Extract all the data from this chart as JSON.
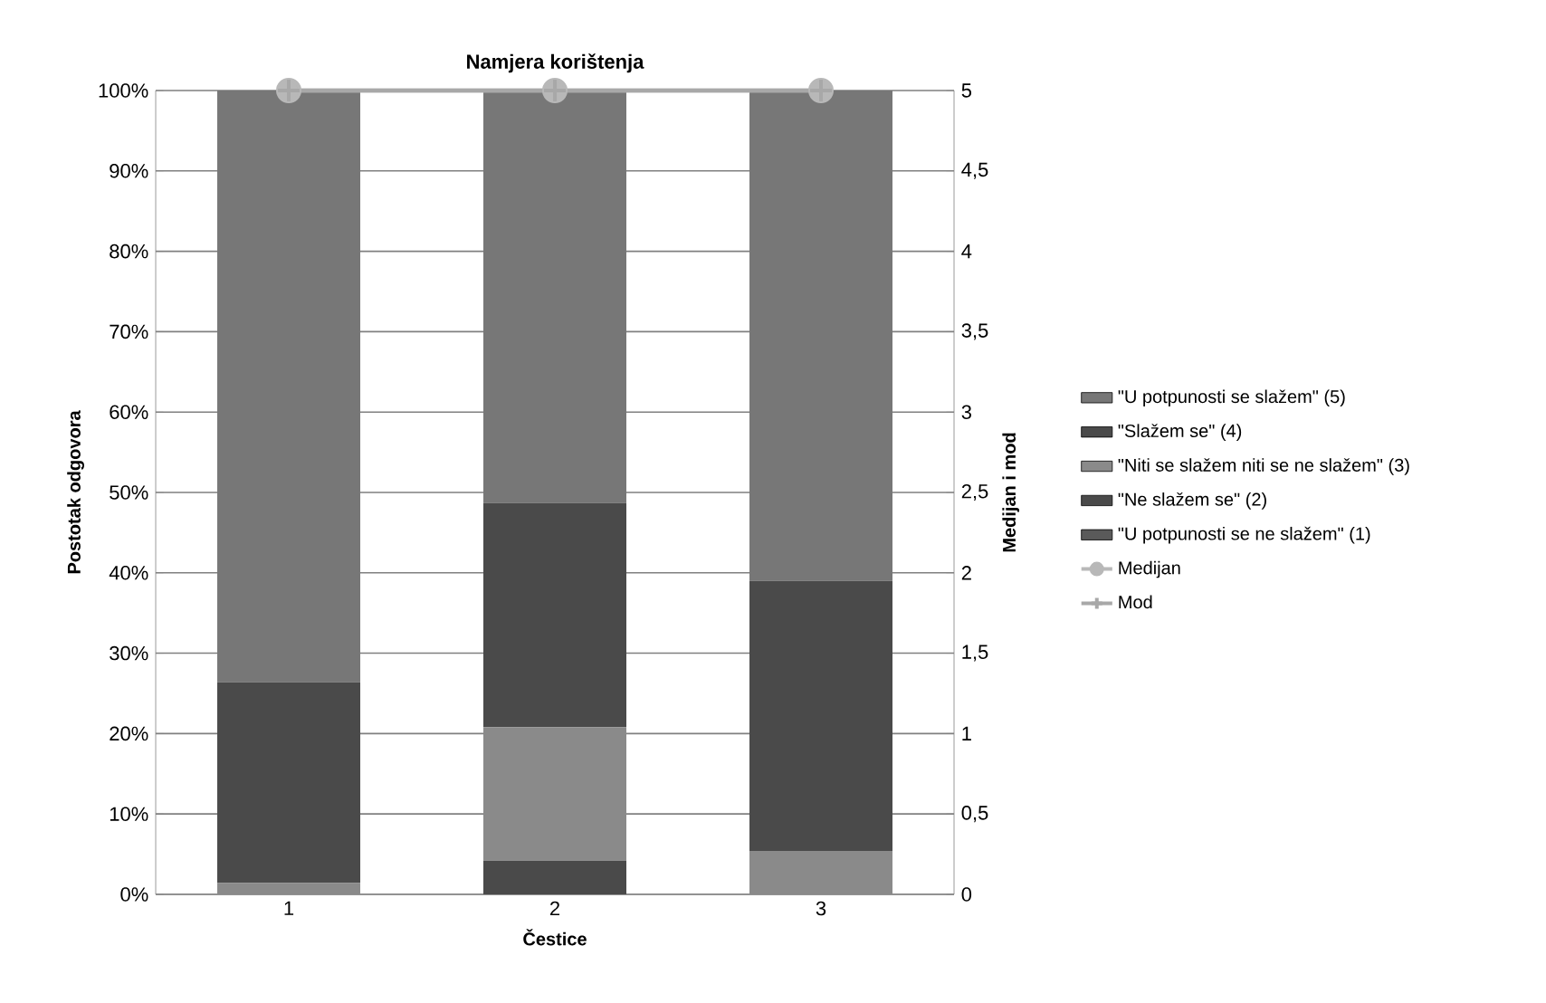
{
  "chart_data": {
    "type": "bar",
    "stacked": true,
    "title": "Namjera korištenja",
    "xlabel": "Čestice",
    "ylabel": "Postotak odgovora",
    "y2label": "Medijan i mod",
    "categories": [
      "1",
      "2",
      "3"
    ],
    "series": [
      {
        "name": "\"U potpunosti se ne slažem\" (1)",
        "color": "#5a5a5a",
        "values": [
          0,
          0,
          0
        ]
      },
      {
        "name": "\"Ne slažem se\" (2)",
        "color": "#4a4a4a",
        "values": [
          0,
          4.2,
          0
        ]
      },
      {
        "name": "\"Niti se slažem niti se ne slažem\" (3)",
        "color": "#8a8a8a",
        "values": [
          1.4,
          16.6,
          5.4
        ]
      },
      {
        "name": "\"Slažem se\" (4)",
        "color": "#4a4a4a",
        "values": [
          25.0,
          27.9,
          33.6
        ]
      },
      {
        "name": "\"U potpunosti se slažem\" (5)",
        "color": "#777777",
        "values": [
          73.6,
          51.3,
          61.0
        ]
      },
      {
        "name": "Medijan",
        "type": "line",
        "axis": "y2",
        "marker": "circle",
        "line_style": "solid",
        "color": "#b8b8b8",
        "values": [
          5,
          5,
          5
        ]
      },
      {
        "name": "Mod",
        "type": "line",
        "axis": "y2",
        "marker": "cross",
        "line_style": "solid",
        "color": "#a8a8a8",
        "values": [
          5,
          5,
          5
        ]
      }
    ],
    "ylim": [
      0,
      100
    ],
    "yticks": [
      {
        "value": 0,
        "label": "0%"
      },
      {
        "value": 10,
        "label": "10%"
      },
      {
        "value": 20,
        "label": "20%"
      },
      {
        "value": 30,
        "label": "30%"
      },
      {
        "value": 40,
        "label": "40%"
      },
      {
        "value": 50,
        "label": "50%"
      },
      {
        "value": 60,
        "label": "60%"
      },
      {
        "value": 70,
        "label": "70%"
      },
      {
        "value": 80,
        "label": "80%"
      },
      {
        "value": 90,
        "label": "90%"
      },
      {
        "value": 100,
        "label": "100%"
      }
    ],
    "y2lim": [
      0,
      5
    ],
    "y2ticks": [
      0,
      {
        "value": 0.5,
        "label": "0,5"
      },
      1,
      {
        "value": 1.5,
        "label": "1,5"
      },
      2,
      {
        "value": 2.5,
        "label": "2,5"
      },
      3,
      {
        "value": 3.5,
        "label": "3,5"
      },
      4,
      {
        "value": 4.5,
        "label": "4,5"
      },
      5
    ],
    "grid": "y",
    "legend": "right"
  }
}
